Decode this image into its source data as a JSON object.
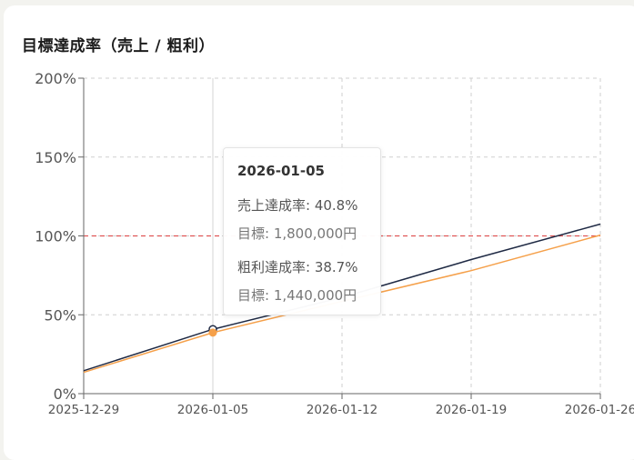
{
  "title": "目標達成率（売上 / 粗利）",
  "tooltip": {
    "date": "2026-01-05",
    "sales_rate": "売上達成率: 40.8%",
    "sales_target": "目標: 1,800,000円",
    "profit_rate": "粗利達成率: 38.7%",
    "profit_target": "目標: 1,440,000円"
  },
  "chart_data": {
    "type": "line",
    "title": "目標達成率（売上 / 粗利）",
    "x": [
      "2025-12-29",
      "2026-01-05",
      "2026-01-12",
      "2026-01-19",
      "2026-01-26"
    ],
    "ylim": [
      0,
      200
    ],
    "yticks": [
      "0%",
      "50%",
      "100%",
      "150%",
      "200%"
    ],
    "yticks_values": [
      0,
      50,
      100,
      150,
      200
    ],
    "reference_line": {
      "value": 100,
      "color": "#e05555",
      "style": "dashed"
    },
    "grid": true,
    "series": [
      {
        "name": "売上達成率",
        "color": "#1f2a44",
        "values": [
          14.5,
          40.8,
          61,
          85,
          107.5
        ]
      },
      {
        "name": "粗利達成率",
        "color": "#f5a04a",
        "values": [
          13.5,
          38.7,
          58.5,
          78,
          100.5
        ]
      }
    ],
    "highlight_index": 1
  }
}
